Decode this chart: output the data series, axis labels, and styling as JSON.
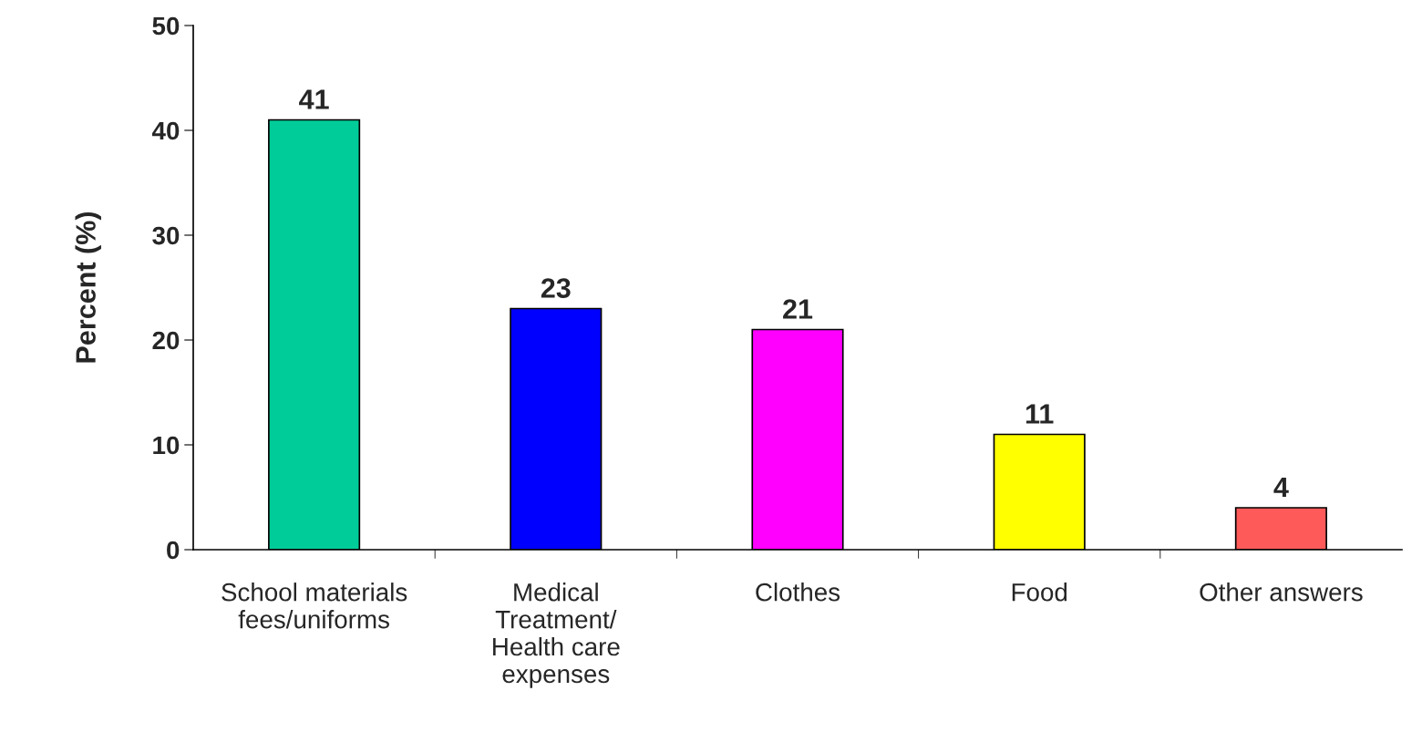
{
  "chart_data": {
    "type": "bar",
    "ylabel": "Percent (%)",
    "categories": [
      "School materials\nfees/uniforms",
      "Medical\nTreatment/\nHealth care\nexpenses",
      "Clothes",
      "Food",
      "Other answers"
    ],
    "values": [
      41,
      23,
      21,
      11,
      4
    ],
    "colors": [
      "#00cc99",
      "#0000ff",
      "#ff00ff",
      "#ffff00",
      "#ff5a5a"
    ],
    "ylim": [
      0,
      50
    ],
    "yticks": [
      0,
      10,
      20,
      30,
      40,
      50
    ],
    "data_labels": true,
    "grid": false,
    "legend": false
  }
}
